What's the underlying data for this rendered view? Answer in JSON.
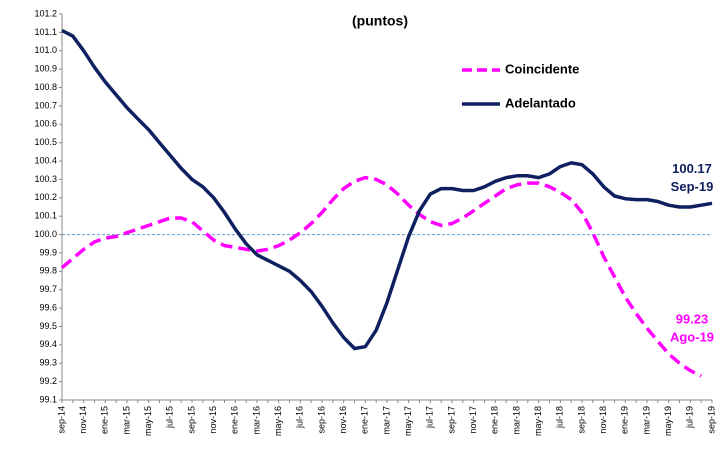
{
  "chart_data": {
    "type": "line",
    "title": "(puntos)",
    "categories": [
      "sep-14",
      null,
      "nov-14",
      null,
      "ene-15",
      null,
      "mar-15",
      null,
      "may-15",
      null,
      "jul-15",
      null,
      "sep-15",
      null,
      "nov-15",
      null,
      "ene-16",
      null,
      "mar-16",
      null,
      "may-16",
      null,
      "jul-16",
      null,
      "sep-16",
      null,
      "nov-16",
      null,
      "ene-17",
      null,
      "mar-17",
      null,
      "may-17",
      null,
      "jul-17",
      null,
      "sep-17",
      null,
      "nov-17",
      null,
      "ene-18",
      null,
      "mar-18",
      null,
      "may-18",
      null,
      "jul-18",
      null,
      "sep-18",
      null,
      "nov-18",
      null,
      "ene-19",
      null,
      "mar-19",
      null,
      "may-19",
      null,
      "jul-19",
      null,
      "sep-19"
    ],
    "series": [
      {
        "name": "Coincidente",
        "color": "#ff00ff",
        "dash": true,
        "values": [
          99.82,
          99.87,
          99.92,
          99.96,
          99.98,
          99.99,
          100.01,
          100.03,
          100.05,
          100.07,
          100.09,
          100.09,
          100.07,
          100.02,
          99.97,
          99.94,
          99.93,
          99.92,
          99.91,
          99.92,
          99.94,
          99.97,
          100.01,
          100.06,
          100.12,
          100.19,
          100.25,
          100.29,
          100.31,
          100.3,
          100.27,
          100.22,
          100.16,
          100.11,
          100.07,
          100.05,
          100.06,
          100.09,
          100.13,
          100.17,
          100.21,
          100.25,
          100.27,
          100.28,
          100.28,
          100.26,
          100.23,
          100.19,
          100.12,
          100.01,
          99.88,
          99.77,
          99.66,
          99.57,
          99.49,
          99.42,
          99.35,
          99.3,
          99.26,
          99.23,
          null
        ],
        "value_labels": [
          null,
          null,
          null,
          null,
          null,
          null,
          null,
          null,
          null,
          null,
          null,
          null,
          null,
          null,
          null,
          null,
          null,
          null,
          null,
          null,
          null,
          null,
          null,
          null,
          null,
          null,
          null,
          null,
          null,
          null,
          null,
          null,
          null,
          null,
          null,
          null,
          null,
          null,
          null,
          null,
          null,
          null,
          null,
          null,
          null,
          null,
          null,
          null,
          null,
          null,
          null,
          null,
          null,
          null,
          null,
          null,
          null,
          null,
          null,
          "99.23",
          null
        ],
        "date_label": "Ago-19"
      },
      {
        "name": "Adelantado",
        "color": "#0f2060",
        "dash": false,
        "values": [
          101.11,
          101.08,
          101.0,
          100.91,
          100.83,
          100.76,
          100.69,
          100.63,
          100.57,
          100.5,
          100.43,
          100.36,
          100.3,
          100.26,
          100.2,
          100.12,
          100.03,
          99.95,
          99.89,
          99.86,
          99.83,
          99.8,
          99.75,
          99.69,
          99.61,
          99.52,
          99.44,
          99.38,
          99.39,
          99.48,
          99.63,
          99.81,
          99.99,
          100.13,
          100.22,
          100.25,
          100.25,
          100.24,
          100.24,
          100.26,
          100.29,
          100.31,
          100.32,
          100.32,
          100.31,
          100.33,
          100.37,
          100.39,
          100.38,
          100.33,
          100.26,
          100.21,
          100.195,
          100.19,
          100.19,
          100.18,
          100.16,
          100.15,
          100.15,
          100.16,
          100.17
        ],
        "value_labels": [
          null,
          null,
          null,
          null,
          null,
          null,
          null,
          null,
          null,
          null,
          null,
          null,
          null,
          null,
          null,
          null,
          null,
          null,
          null,
          null,
          null,
          null,
          null,
          null,
          null,
          null,
          null,
          null,
          null,
          null,
          null,
          null,
          null,
          null,
          null,
          null,
          null,
          null,
          null,
          null,
          null,
          null,
          null,
          null,
          null,
          null,
          null,
          null,
          null,
          null,
          null,
          null,
          null,
          null,
          null,
          null,
          null,
          null,
          null,
          null,
          "100.17"
        ],
        "date_label": "Sep-19"
      }
    ],
    "ylim": [
      99.1,
      101.2
    ],
    "yticks": [
      99.1,
      99.2,
      99.3,
      99.4,
      99.5,
      99.6,
      99.7,
      99.8,
      99.9,
      {
        "value": 100,
        "label": "100.0"
      },
      100.1,
      100.2,
      100.3,
      100.4,
      100.5,
      100.6,
      100.7,
      100.8,
      100.9,
      {
        "value": 101,
        "label": "101.0"
      },
      101.1,
      101.2
    ],
    "reference_line": 100,
    "reference_color": "#5b9bd5",
    "legend": "upper right"
  }
}
